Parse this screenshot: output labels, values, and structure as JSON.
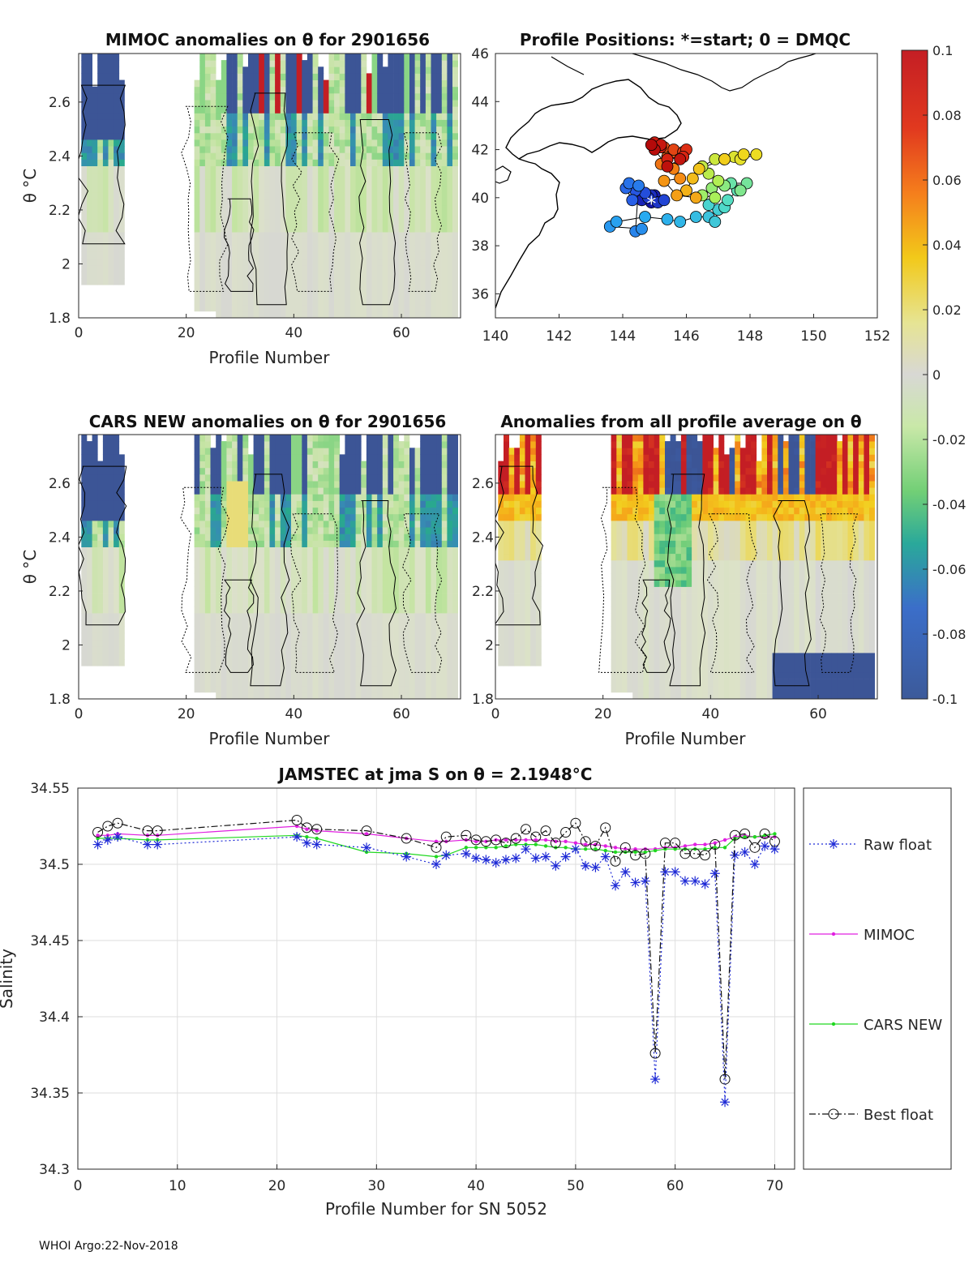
{
  "footer": "WHOI Argo:22-Nov-2018",
  "chart_data": [
    {
      "type": "heatmap",
      "title": "MIMOC anomalies on θ  for 2901656",
      "xlabel": "Profile Number",
      "ylabel": "θ °C",
      "xlim": [
        0,
        71
      ],
      "ylim": [
        1.8,
        2.78
      ],
      "xticks": [
        "0",
        "20",
        "40",
        "60"
      ],
      "yticks": [
        "1.8",
        "2",
        "2.2",
        "2.4",
        "2.6"
      ]
    },
    {
      "type": "scatter",
      "title": "Profile Positions: *=start; 0 = DMQC",
      "xlim": [
        140,
        152
      ],
      "ylim": [
        35,
        46
      ],
      "xticks": [
        "140",
        "142",
        "144",
        "146",
        "148",
        "150",
        "152"
      ],
      "yticks": [
        "36",
        "38",
        "40",
        "42",
        "44",
        "46"
      ],
      "track": [
        [
          144.9,
          39.8
        ],
        [
          145.0,
          40.1
        ],
        [
          144.6,
          39.9
        ],
        [
          144.9,
          40.1
        ],
        [
          145.1,
          39.8
        ],
        [
          144.8,
          40.0
        ],
        [
          145.3,
          39.9
        ],
        [
          144.7,
          40.2
        ],
        [
          144.4,
          40.3
        ],
        [
          144.3,
          39.9
        ],
        [
          144.1,
          40.4
        ],
        [
          144.2,
          40.6
        ],
        [
          144.5,
          40.5
        ],
        [
          144.4,
          38.6
        ],
        [
          144.6,
          38.7
        ],
        [
          143.6,
          38.8
        ],
        [
          143.8,
          39.0
        ],
        [
          144.7,
          39.2
        ],
        [
          145.4,
          39.1
        ],
        [
          145.8,
          39.0
        ],
        [
          146.3,
          39.2
        ],
        [
          146.7,
          39.2
        ],
        [
          146.9,
          39.0
        ],
        [
          147.0,
          39.5
        ],
        [
          146.7,
          39.7
        ],
        [
          147.2,
          39.6
        ],
        [
          147.3,
          39.9
        ],
        [
          147.6,
          40.3
        ],
        [
          147.4,
          40.6
        ],
        [
          147.9,
          40.6
        ],
        [
          147.7,
          40.3
        ],
        [
          147.2,
          40.5
        ],
        [
          146.8,
          40.4
        ],
        [
          146.5,
          40.1
        ],
        [
          146.9,
          40.0
        ],
        [
          147.0,
          40.7
        ],
        [
          146.7,
          41.0
        ],
        [
          146.5,
          41.3
        ],
        [
          146.9,
          41.6
        ],
        [
          147.2,
          41.6
        ],
        [
          147.5,
          41.7
        ],
        [
          147.7,
          41.6
        ],
        [
          148.2,
          41.8
        ],
        [
          147.8,
          41.8
        ],
        [
          147.2,
          41.6
        ],
        [
          146.4,
          41.2
        ],
        [
          146.2,
          40.8
        ],
        [
          146.0,
          40.3
        ],
        [
          146.3,
          40.0
        ],
        [
          145.7,
          40.1
        ],
        [
          145.3,
          40.7
        ],
        [
          145.8,
          40.8
        ],
        [
          145.6,
          41.2
        ],
        [
          145.2,
          41.4
        ],
        [
          145.4,
          41.7
        ],
        [
          145.6,
          41.9
        ],
        [
          145.3,
          42.1
        ],
        [
          145.6,
          42.0
        ],
        [
          145.9,
          41.9
        ],
        [
          146.0,
          42.0
        ],
        [
          145.9,
          41.7
        ],
        [
          145.4,
          41.6
        ],
        [
          145.2,
          42.1
        ],
        [
          145.0,
          42.3
        ],
        [
          145.2,
          42.2
        ],
        [
          145.8,
          41.6
        ],
        [
          145.4,
          41.3
        ],
        [
          145.0,
          42.0
        ],
        [
          144.9,
          42.2
        ]
      ]
    },
    {
      "type": "heatmap",
      "title": "CARS NEW anomalies on θ for 2901656",
      "xlabel": "Profile Number",
      "ylabel": "θ °C",
      "xlim": [
        0,
        71
      ],
      "ylim": [
        1.8,
        2.78
      ],
      "xticks": [
        "0",
        "20",
        "40",
        "60"
      ],
      "yticks": [
        "1.8",
        "2",
        "2.2",
        "2.4",
        "2.6"
      ]
    },
    {
      "type": "heatmap",
      "title": "Anomalies from all profile average on θ",
      "xlabel": "Profile Number",
      "xlim": [
        0,
        71
      ],
      "ylim": [
        1.8,
        2.78
      ],
      "xticks": [
        "0",
        "20",
        "40",
        "60"
      ],
      "yticks": [
        "1.8",
        "2",
        "2.2",
        "2.4",
        "2.6"
      ]
    },
    {
      "type": "colorbar",
      "range": [
        -0.1,
        0.1
      ],
      "ticks": [
        "0.1",
        "0.08",
        "0.06",
        "0.04",
        "0.02",
        "0",
        "-0.02",
        "-0.04",
        "-0.06",
        "-0.08",
        "-0.1"
      ]
    },
    {
      "type": "line",
      "title": "JAMSTEC at jma S on θ = 2.1948°C",
      "xlabel": "Profile Number for SN 5052",
      "ylabel": "Salinity",
      "xlim": [
        0,
        72
      ],
      "ylim": [
        34.3,
        34.55
      ],
      "xticks": [
        "0",
        "10",
        "20",
        "30",
        "40",
        "50",
        "60",
        "70"
      ],
      "yticks": [
        "34.3",
        "34.35",
        "34.4",
        "34.45",
        "34.5",
        "34.55"
      ],
      "x": [
        2,
        3,
        4,
        7,
        8,
        22,
        23,
        24,
        29,
        33,
        36,
        37,
        39,
        40,
        41,
        42,
        43,
        44,
        45,
        46,
        47,
        48,
        49,
        50,
        51,
        52,
        53,
        54,
        55,
        56,
        57,
        58,
        59,
        60,
        61,
        62,
        63,
        64,
        65,
        66,
        67,
        68,
        69,
        70
      ],
      "series": [
        {
          "name": "Raw float",
          "values": [
            34.513,
            34.516,
            34.518,
            34.513,
            34.513,
            34.518,
            34.514,
            34.513,
            34.511,
            34.505,
            34.5,
            34.506,
            34.507,
            34.504,
            34.503,
            34.501,
            34.503,
            34.504,
            34.51,
            34.504,
            34.505,
            34.499,
            34.505,
            34.51,
            34.499,
            34.498,
            34.505,
            34.486,
            34.495,
            34.488,
            34.489,
            34.359,
            34.495,
            34.495,
            34.489,
            34.489,
            34.487,
            34.494,
            34.344,
            34.506,
            34.508,
            34.5,
            34.512,
            34.51
          ]
        },
        {
          "name": "MIMOC",
          "values": [
            34.519,
            34.519,
            34.52,
            34.519,
            34.519,
            34.525,
            34.523,
            34.522,
            34.52,
            34.517,
            34.515,
            34.515,
            34.516,
            34.515,
            34.515,
            34.516,
            34.516,
            34.516,
            34.516,
            34.516,
            34.516,
            34.515,
            34.515,
            34.514,
            34.513,
            34.513,
            34.512,
            34.511,
            34.51,
            34.51,
            34.51,
            34.51,
            34.511,
            34.511,
            34.512,
            34.513,
            34.513,
            34.514,
            34.516,
            34.518,
            34.519,
            34.518,
            34.518,
            34.518
          ]
        },
        {
          "name": "CARS NEW",
          "values": [
            34.517,
            34.517,
            34.517,
            34.516,
            34.516,
            34.519,
            34.518,
            34.517,
            34.508,
            34.507,
            34.505,
            34.506,
            34.511,
            34.511,
            34.511,
            34.511,
            34.512,
            34.513,
            34.513,
            34.513,
            34.512,
            34.511,
            34.511,
            34.51,
            34.51,
            34.51,
            34.509,
            34.508,
            34.508,
            34.508,
            34.508,
            34.509,
            34.51,
            34.51,
            34.51,
            34.51,
            34.51,
            34.511,
            34.511,
            34.517,
            34.518,
            34.518,
            34.519,
            34.52
          ]
        },
        {
          "name": "Best float",
          "values": [
            34.521,
            34.525,
            34.527,
            34.522,
            34.522,
            34.529,
            34.524,
            34.523,
            34.522,
            34.517,
            34.511,
            34.518,
            34.519,
            34.516,
            34.515,
            34.516,
            34.514,
            34.517,
            34.523,
            34.518,
            34.522,
            34.514,
            34.521,
            34.527,
            34.515,
            34.512,
            34.524,
            34.502,
            34.511,
            34.506,
            34.507,
            34.376,
            34.514,
            34.514,
            34.507,
            34.507,
            34.506,
            34.513,
            34.359,
            34.519,
            34.52,
            34.511,
            34.52,
            34.515
          ]
        }
      ],
      "legend": [
        "Raw float",
        "MIMOC",
        "CARS NEW",
        "Best float"
      ]
    }
  ]
}
